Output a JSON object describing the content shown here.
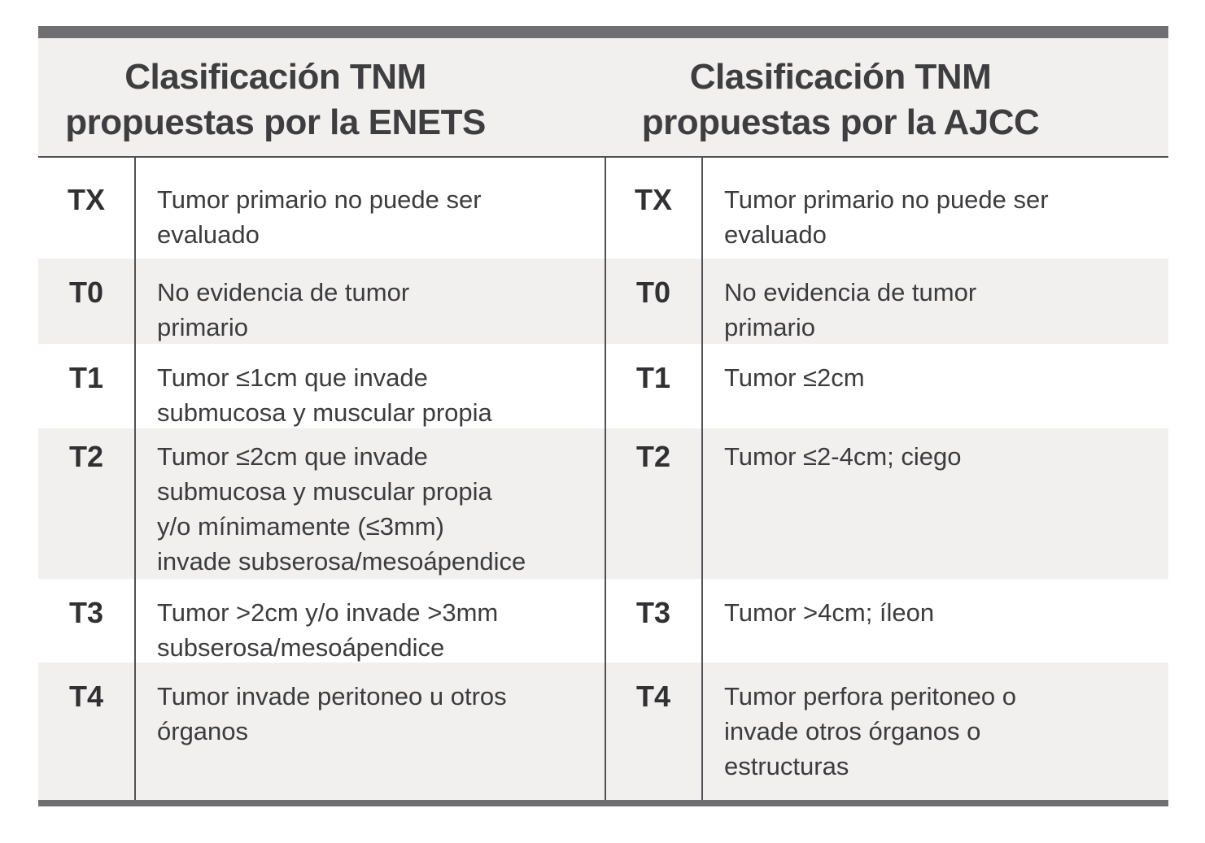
{
  "colors": {
    "bar_gray": "#6f6f71",
    "stripe_gray": "#f1f0ee",
    "line_gray": "#515256",
    "text_gray": "#3c3c3f"
  },
  "tables": {
    "enets": {
      "title": "Clasificación TNM\npropuestas por la ENETS",
      "rows": [
        {
          "label": "TX",
          "desc": "Tumor primario no puede ser\nevaluado"
        },
        {
          "label": "T0",
          "desc": "No evidencia de tumor\nprimario"
        },
        {
          "label": "T1",
          "desc": "Tumor ≤1cm que invade\nsubmucosa y muscular propia"
        },
        {
          "label": "T2",
          "desc": "Tumor ≤2cm que invade\nsubmucosa y muscular propia\ny/o mínimamente (≤3mm)\ninvade subserosa/mesoápendice"
        },
        {
          "label": "T3",
          "desc": "Tumor >2cm y/o invade >3mm\nsubserosa/mesoápendice"
        },
        {
          "label": "T4",
          "desc": "Tumor invade peritoneo u otros\nórganos"
        }
      ]
    },
    "ajcc": {
      "title": "Clasificación TNM\npropuestas por la AJCC",
      "rows": [
        {
          "label": "TX",
          "desc": "Tumor primario no puede ser\nevaluado"
        },
        {
          "label": "T0",
          "desc": "No evidencia de tumor\nprimario"
        },
        {
          "label": "T1",
          "desc": "Tumor ≤2cm"
        },
        {
          "label": "T2",
          "desc": "Tumor ≤2-4cm; ciego"
        },
        {
          "label": "T3",
          "desc": "Tumor >4cm; íleon"
        },
        {
          "label": "T4",
          "desc": "Tumor perfora peritoneo o\ninvade otros órganos o\nestructuras"
        }
      ]
    }
  }
}
